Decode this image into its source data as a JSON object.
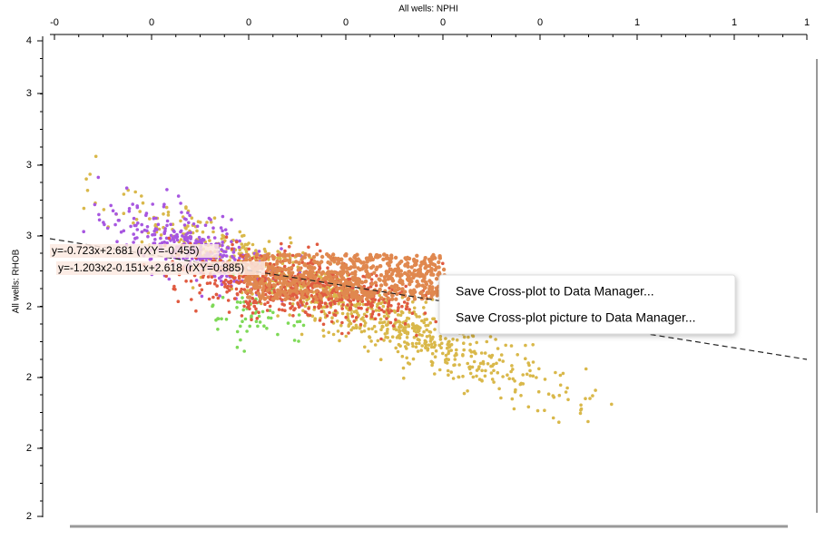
{
  "plot": {
    "x_axis_label": "All wells: NPHI",
    "y_axis_label": "All wells: RHOB",
    "x_tick_labels": [
      "-0",
      "0",
      "0",
      "0",
      "0",
      "0",
      "1",
      "1",
      "1"
    ],
    "y_tick_labels": [
      "4",
      "3",
      "3",
      "3",
      "2",
      "2",
      "2",
      "2"
    ],
    "regression_labels": [
      "y=-0.723x+2.681 (rXY=-0.455)",
      "y=-1.203x2-0.151x+2.618 (rXY=0.885)"
    ]
  },
  "context_menu": {
    "items": [
      "Save Cross-plot to Data Manager...",
      "Save Cross-plot picture to Data Manager..."
    ]
  }
}
